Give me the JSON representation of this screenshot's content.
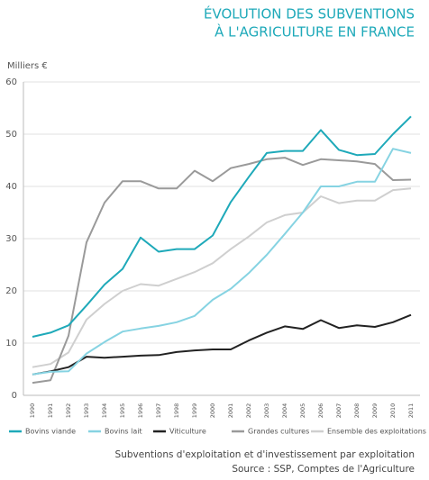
{
  "chart_data": {
    "type": "line",
    "title": [
      "ÉVOLUTION DES SUBVENTIONS",
      "À L'AGRICULTURE EN FRANCE"
    ],
    "ylabel": "Milliers €",
    "categories": [
      "1990",
      "1991",
      "1992",
      "1993",
      "1994",
      "1995",
      "1996",
      "1997",
      "1998",
      "1999",
      "2000",
      "2001",
      "2002",
      "2003",
      "2004",
      "2005",
      "2006",
      "2007",
      "2008",
      "2009",
      "2010",
      "2011"
    ],
    "series": [
      {
        "name": "Bovins viande",
        "color": "#1ea9b9",
        "values": [
          11.2,
          12.0,
          13.4,
          17.2,
          21.2,
          24.2,
          30.2,
          27.5,
          28.0,
          28.0,
          30.6,
          37.0,
          41.8,
          46.4,
          46.8,
          46.8,
          50.8,
          47.0,
          46.0,
          46.2,
          50.0,
          53.4
        ]
      },
      {
        "name": "Bovins lait",
        "color": "#86d3e2",
        "values": [
          4.0,
          4.5,
          4.6,
          8.0,
          10.2,
          12.2,
          12.8,
          13.3,
          14.0,
          15.2,
          18.3,
          20.4,
          23.4,
          26.9,
          30.9,
          35.0,
          40.0,
          40.0,
          40.9,
          40.9,
          47.2,
          46.4
        ]
      },
      {
        "name": "Viticulture",
        "color": "#222222",
        "values": [
          4.0,
          4.6,
          5.4,
          7.4,
          7.2,
          7.4,
          7.6,
          7.7,
          8.3,
          8.6,
          8.8,
          8.8,
          10.5,
          12.0,
          13.2,
          12.7,
          14.4,
          12.9,
          13.4,
          13.1,
          14.0,
          15.4
        ]
      },
      {
        "name": "Grandes cultures",
        "color": "#9a9a9a",
        "values": [
          2.4,
          2.9,
          11.4,
          29.3,
          36.9,
          41.0,
          41.0,
          39.6,
          39.6,
          43.0,
          41.0,
          43.5,
          44.3,
          45.2,
          45.5,
          44.1,
          45.2,
          45.0,
          44.8,
          44.3,
          41.2,
          41.3
        ]
      },
      {
        "name": "Ensemble des exploitations",
        "color": "#cfcfcf",
        "values": [
          5.4,
          6.0,
          8.2,
          14.5,
          17.5,
          20.0,
          21.3,
          21.0,
          22.3,
          23.6,
          25.3,
          28.0,
          30.4,
          33.1,
          34.5,
          35.0,
          38.1,
          36.8,
          37.3,
          37.3,
          39.3,
          39.6
        ]
      }
    ],
    "ylim": [
      0,
      60
    ],
    "yticks": [
      0,
      10,
      20,
      30,
      40,
      50,
      60
    ],
    "grid": true,
    "footer": [
      "Subventions d'exploitation et d'investissement par exploitation",
      "Source : SSP, Comptes de l'Agriculture"
    ]
  }
}
